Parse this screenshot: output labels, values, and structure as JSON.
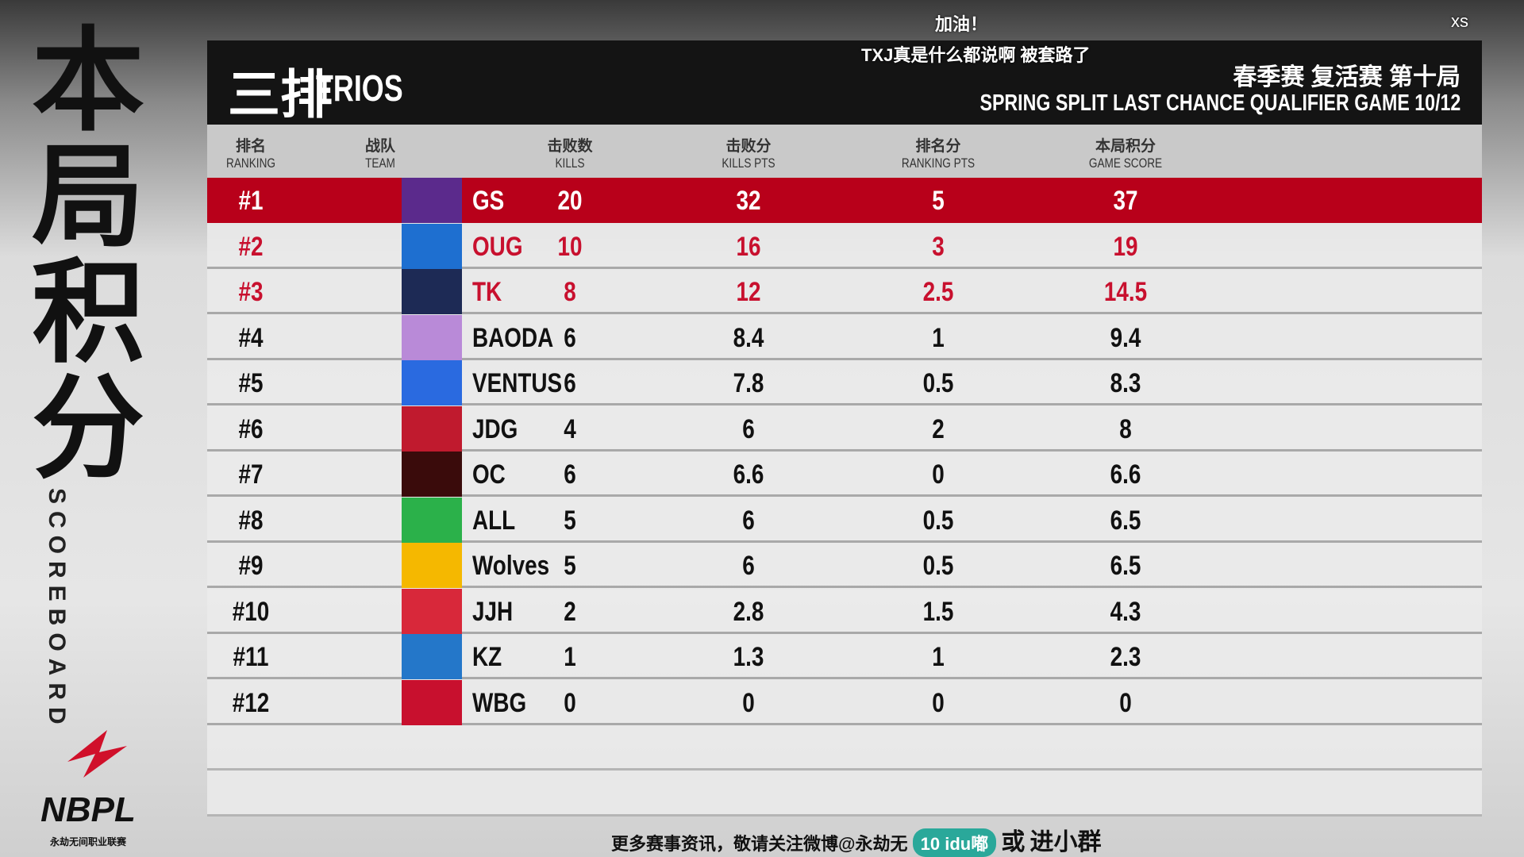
{
  "side": {
    "title": "本局积分",
    "subtitle": "SCOREBOARD",
    "logo": "NBPL",
    "logo_sub": "永劫无间职业联赛"
  },
  "header": {
    "title": "三排",
    "title_en": "TRIOS",
    "subtitle": "春季赛 复活赛 第十局",
    "subtitle_en": "SPRING SPLIT LAST CHANCE QUALIFIER GAME 10/12"
  },
  "comments": [
    "加油！",
    "TXJ真是什么都说啊 被套路了",
    "xs"
  ],
  "table": {
    "columns": [
      {
        "cn": "排名",
        "en": "RANKING"
      },
      {
        "cn": "战队",
        "en": "TEAM"
      },
      {
        "cn": "击败数",
        "en": "KILLS"
      },
      {
        "cn": "击败分",
        "en": "KILLS PTS"
      },
      {
        "cn": "排名分",
        "en": "RANKING PTS"
      },
      {
        "cn": "本局积分",
        "en": "GAME SCORE"
      }
    ],
    "rows": [
      [
        "#1",
        "GS",
        20,
        32,
        5,
        37
      ],
      [
        "#2",
        "OUG",
        10,
        16,
        3,
        19
      ],
      [
        "#3",
        "TK",
        8,
        12,
        2.5,
        14.5
      ],
      [
        "#4",
        "BAODA",
        6,
        8.4,
        1,
        9.4
      ],
      [
        "#5",
        "VENTUS",
        6,
        7.8,
        0.5,
        8.3
      ],
      [
        "#6",
        "JDG",
        4,
        6,
        2,
        8
      ],
      [
        "#7",
        "OC",
        6,
        6.6,
        0,
        6.6
      ],
      [
        "#8",
        "ALL",
        5,
        6,
        0.5,
        6.5
      ],
      [
        "#9",
        "Wolves",
        5,
        6,
        0.5,
        6.5
      ],
      [
        "#10",
        "JJH",
        2,
        2.8,
        1.5,
        4.3
      ],
      [
        "#11",
        "KZ",
        1,
        1.3,
        1,
        2.3
      ],
      [
        "#12",
        "WBG",
        0,
        0,
        0,
        0
      ]
    ]
  },
  "footer": {
    "text": "更多赛事资讯，敬请关注微博@永劫无",
    "level": "10",
    "user": "idu嘟",
    "or": "或",
    "join": "进小群"
  }
}
